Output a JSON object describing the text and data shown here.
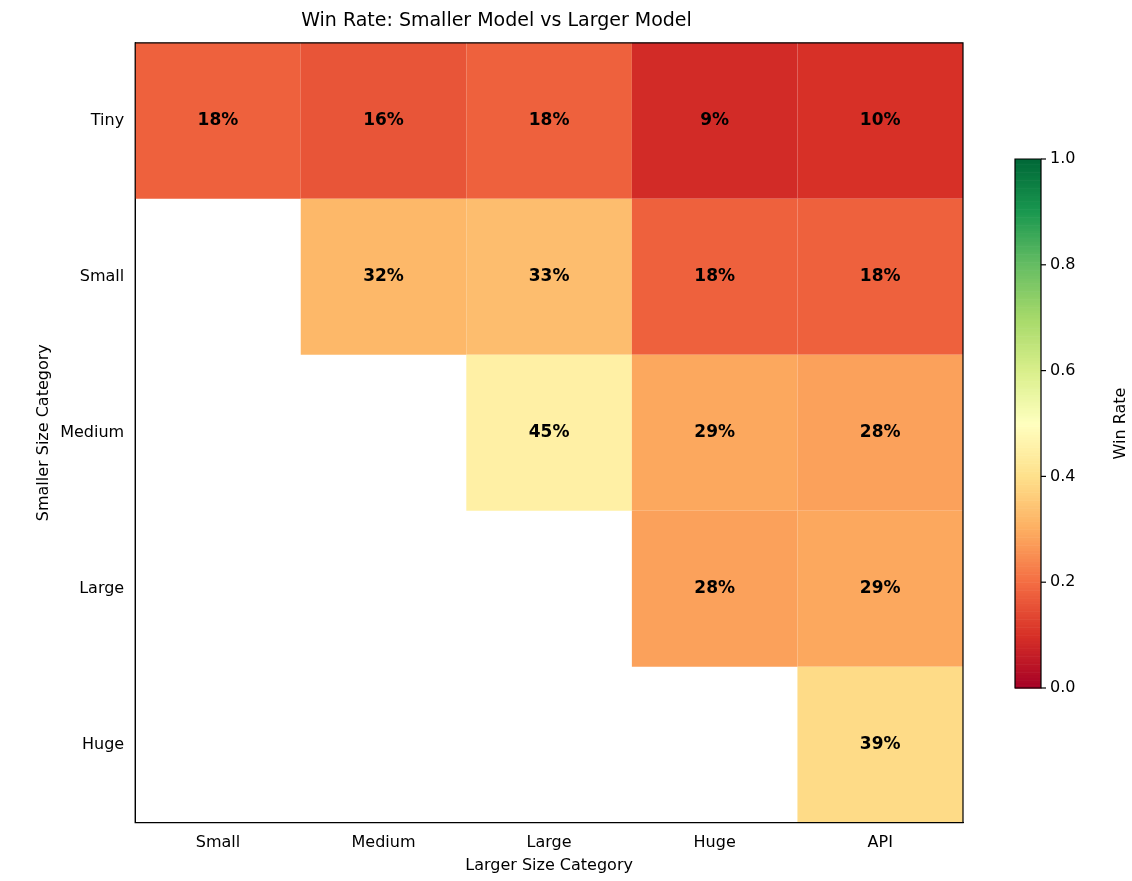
{
  "chart_data": {
    "type": "heatmap",
    "title": "Win Rate: Smaller Model vs Larger Model",
    "xlabel": "Larger Size Category",
    "ylabel": "Smaller Size Category",
    "clabel": "Win Rate",
    "categories": [
      "Small",
      "Medium",
      "Large",
      "Huge",
      "API"
    ],
    "y_categories": [
      "Tiny",
      "Small",
      "Medium",
      "Large",
      "Huge"
    ],
    "cells": [
      [
        0.18,
        0.16,
        0.18,
        0.09,
        0.1
      ],
      [
        null,
        0.32,
        0.33,
        0.18,
        0.18
      ],
      [
        null,
        null,
        0.45,
        0.29,
        0.28
      ],
      [
        null,
        null,
        null,
        0.28,
        0.29
      ],
      [
        null,
        null,
        null,
        null,
        0.39
      ]
    ],
    "cell_labels": [
      [
        "18%",
        "16%",
        "18%",
        "9%",
        "10%"
      ],
      [
        null,
        "32%",
        "33%",
        "18%",
        "18%"
      ],
      [
        null,
        null,
        "45%",
        "29%",
        "28%"
      ],
      [
        null,
        null,
        null,
        "28%",
        "29%"
      ],
      [
        null,
        null,
        null,
        null,
        "39%"
      ]
    ],
    "clim": [
      0,
      1
    ],
    "cticks": [
      {
        "value": 0,
        "label": "0.0"
      },
      0.2,
      0.4,
      0.6,
      0.8,
      {
        "value": 1,
        "label": "1.0"
      }
    ]
  }
}
